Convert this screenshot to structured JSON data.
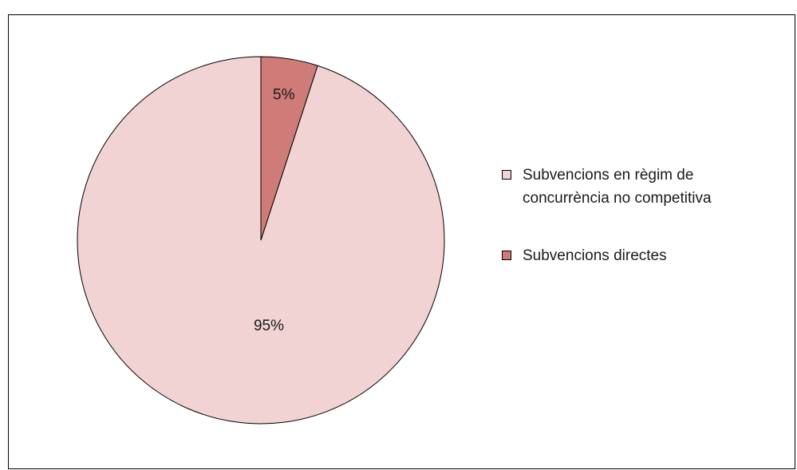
{
  "chart_data": {
    "type": "pie",
    "categories": [
      "Subvencions en règim de concurrència no competitiva",
      "Subvencions directes"
    ],
    "values": [
      95,
      5
    ],
    "data_labels": [
      "95%",
      "5%"
    ],
    "colors": [
      "#f2d3d4",
      "#cf7b77"
    ],
    "legend": "right",
    "start_angle": "top",
    "direction": "counterclockwise"
  }
}
